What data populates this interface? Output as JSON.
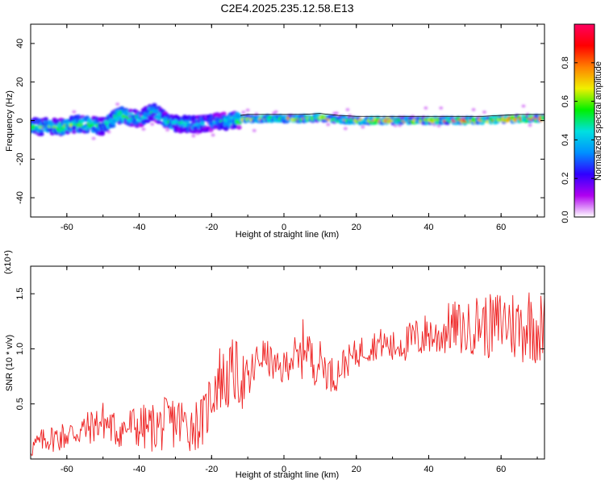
{
  "title": "C2E4.2025.235.12.58.E13",
  "chart_data": [
    {
      "type": "heatmap",
      "xlabel": "Height of straight line (km)",
      "ylabel": "Frequency (Hz)",
      "xlim": [
        -70,
        72
      ],
      "ylim": [
        -50,
        50
      ],
      "x_ticks": [
        "-60",
        "-40",
        "-20",
        "0",
        "20",
        "40",
        "60"
      ],
      "y_ticks": [
        "40",
        "20",
        "0",
        "-20",
        "-40"
      ],
      "colorbar": {
        "label": "Normalized spectral amplitude",
        "range": [
          0,
          1
        ],
        "ticks": [
          "0.0",
          "0.2",
          "0.4",
          "0.6",
          "0.8"
        ],
        "colors": [
          "#ffffff",
          "#b000f0",
          "#3000ff",
          "#0090ff",
          "#00e0e0",
          "#00f000",
          "#f0f000",
          "#ff8000",
          "#ff0000",
          "#ff0060"
        ]
      },
      "ridge": [
        {
          "x": -68,
          "f": -3.0,
          "a": 0.55
        },
        {
          "x": -62,
          "f": -3.5,
          "a": 0.55
        },
        {
          "x": -56,
          "f": -1.5,
          "a": 0.6
        },
        {
          "x": -50,
          "f": -3.0,
          "a": 0.5
        },
        {
          "x": -45,
          "f": 3.0,
          "a": 0.6
        },
        {
          "x": -40,
          "f": 1.0,
          "a": 0.5
        },
        {
          "x": -36,
          "f": 5.0,
          "a": 0.5
        },
        {
          "x": -32,
          "f": -1.0,
          "a": 0.5
        },
        {
          "x": -26,
          "f": -2.0,
          "a": 0.45
        },
        {
          "x": -20,
          "f": -1.0,
          "a": 0.4
        },
        {
          "x": -14,
          "f": 0.0,
          "a": 0.5
        },
        {
          "x": -10,
          "f": 1.0,
          "a": 0.75
        },
        {
          "x": -5,
          "f": 1.0,
          "a": 0.7
        },
        {
          "x": 0,
          "f": 1.0,
          "a": 0.7
        },
        {
          "x": 5,
          "f": 1.0,
          "a": 0.75
        },
        {
          "x": 10,
          "f": 1.5,
          "a": 0.75
        },
        {
          "x": 15,
          "f": 0.5,
          "a": 0.65
        },
        {
          "x": 20,
          "f": 0.0,
          "a": 0.8
        },
        {
          "x": 25,
          "f": 0.0,
          "a": 0.9
        },
        {
          "x": 30,
          "f": 0.0,
          "a": 0.8
        },
        {
          "x": 35,
          "f": 0.0,
          "a": 0.75
        },
        {
          "x": 40,
          "f": 0.0,
          "a": 0.75
        },
        {
          "x": 45,
          "f": 0.0,
          "a": 0.8
        },
        {
          "x": 50,
          "f": 0.0,
          "a": 0.8
        },
        {
          "x": 55,
          "f": 0.0,
          "a": 0.8
        },
        {
          "x": 60,
          "f": 0.5,
          "a": 0.9
        },
        {
          "x": 65,
          "f": 1.0,
          "a": 0.9
        },
        {
          "x": 70,
          "f": 1.0,
          "a": 0.9
        }
      ]
    },
    {
      "type": "line",
      "xlabel": "Height of straight line (km)",
      "ylabel": "SNR (10 * v/v)",
      "scale_label": "(x10⁴)",
      "xlim": [
        -70,
        72
      ],
      "ylim": [
        0,
        1.75
      ],
      "x_ticks": [
        "-60",
        "-40",
        "-20",
        "0",
        "20",
        "40",
        "60"
      ],
      "y_ticks": [
        "1.5",
        "1.0",
        "0.5"
      ],
      "color": "#ee2222",
      "x": [
        -70,
        -66,
        -62,
        -58,
        -54,
        -50,
        -46,
        -42,
        -38,
        -34,
        -30,
        -26,
        -22,
        -20,
        -18,
        -16,
        -14,
        -12,
        -10,
        -8,
        -6,
        -4,
        -2,
        0,
        2,
        4,
        6,
        8,
        10,
        12,
        14,
        16,
        18,
        20,
        22,
        24,
        26,
        28,
        30,
        32,
        34,
        36,
        38,
        40,
        42,
        44,
        46,
        48,
        50,
        52,
        54,
        56,
        58,
        60,
        62,
        64,
        66,
        68,
        70,
        72
      ],
      "y": [
        0.1,
        0.18,
        0.2,
        0.24,
        0.28,
        0.35,
        0.25,
        0.3,
        0.28,
        0.3,
        0.35,
        0.3,
        0.35,
        0.6,
        0.75,
        0.7,
        0.8,
        0.75,
        0.65,
        0.85,
        0.95,
        0.9,
        0.8,
        0.82,
        0.95,
        0.85,
        1.1,
        0.85,
        0.9,
        0.8,
        0.75,
        0.85,
        0.9,
        0.95,
        1.0,
        1.02,
        1.05,
        1.05,
        1.0,
        1.05,
        1.05,
        1.1,
        1.1,
        1.15,
        1.1,
        1.15,
        1.2,
        1.2,
        1.15,
        1.2,
        1.25,
        1.2,
        1.2,
        1.25,
        1.25,
        1.2,
        1.2,
        1.25,
        1.2,
        1.15
      ],
      "amplitude": [
        0.1,
        0.12,
        0.14,
        0.15,
        0.16,
        0.18,
        0.16,
        0.2,
        0.22,
        0.24,
        0.26,
        0.24,
        0.24,
        0.3,
        0.32,
        0.3,
        0.3,
        0.3,
        0.26,
        0.2,
        0.16,
        0.16,
        0.16,
        0.16,
        0.2,
        0.24,
        0.28,
        0.2,
        0.18,
        0.18,
        0.16,
        0.16,
        0.14,
        0.14,
        0.14,
        0.14,
        0.14,
        0.14,
        0.16,
        0.16,
        0.18,
        0.18,
        0.2,
        0.2,
        0.2,
        0.22,
        0.24,
        0.24,
        0.24,
        0.26,
        0.28,
        0.3,
        0.3,
        0.32,
        0.34,
        0.34,
        0.34,
        0.36,
        0.36,
        0.36
      ]
    }
  ]
}
